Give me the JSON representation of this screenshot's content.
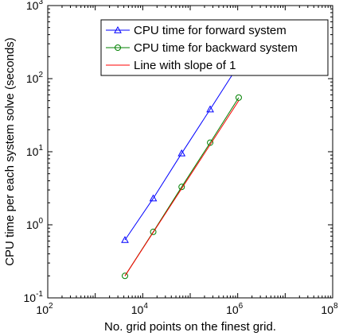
{
  "chart_data": {
    "type": "line",
    "xscale": "log",
    "yscale": "log",
    "xlim": [
      100,
      100000000
    ],
    "ylim": [
      0.1,
      1000
    ],
    "xlabel": "No. grid points on the finest grid.",
    "ylabel": "CPU time per each system solve (seconds)",
    "x_ticks": [
      {
        "value": 100,
        "base": "10",
        "exp": "2"
      },
      {
        "value": 10000,
        "base": "10",
        "exp": "4"
      },
      {
        "value": 1000000,
        "base": "10",
        "exp": "6"
      },
      {
        "value": 100000000,
        "base": "10",
        "exp": "8"
      }
    ],
    "y_ticks": [
      {
        "value": 0.1,
        "base": "10",
        "exp": "-1"
      },
      {
        "value": 1,
        "base": "10",
        "exp": "0"
      },
      {
        "value": 10,
        "base": "10",
        "exp": "1"
      },
      {
        "value": 100,
        "base": "10",
        "exp": "2"
      },
      {
        "value": 1000,
        "base": "10",
        "exp": "3"
      }
    ],
    "grid": false,
    "legend_position": "top-right",
    "series": [
      {
        "name": "CPU time for forward system",
        "color": "#0000ff",
        "marker": "triangle",
        "x": [
          4225,
          16641,
          66049,
          263169,
          1050625
        ],
        "y": [
          0.62,
          2.3,
          9.5,
          38,
          155
        ]
      },
      {
        "name": "CPU time for backward system",
        "color": "#008000",
        "marker": "circle",
        "x": [
          4225,
          16641,
          66049,
          263169,
          1050625
        ],
        "y": [
          0.2,
          0.8,
          3.3,
          13.3,
          55
        ]
      },
      {
        "name": "Line with slope of 1",
        "color": "#ff0000",
        "marker": "none",
        "x": [
          4225,
          1050625
        ],
        "y": [
          0.2,
          50
        ]
      }
    ]
  }
}
